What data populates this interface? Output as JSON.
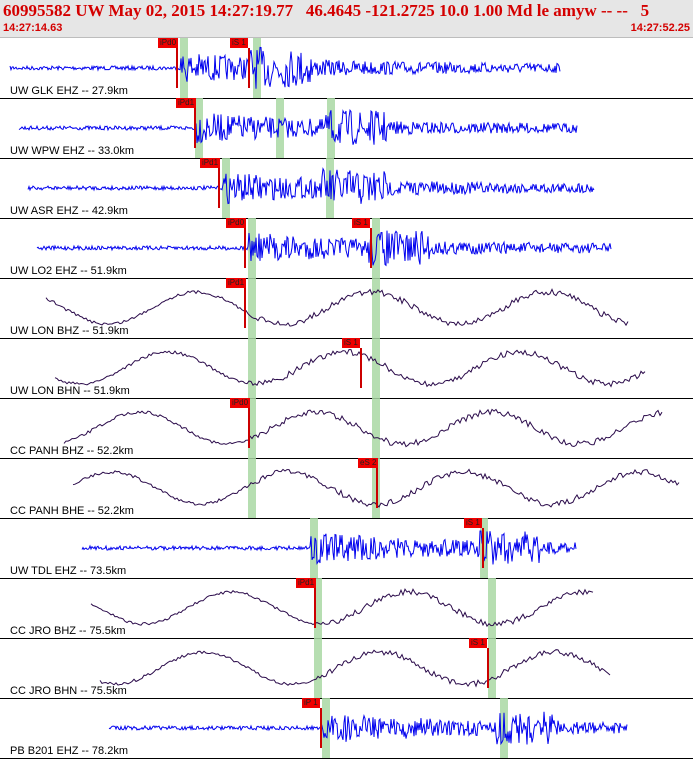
{
  "header": {
    "title": "60995582 UW May 02, 2015 14:27:19.77   46.4645 -121.2725 10.0 1.00 Md le amyw -- --   5",
    "start_time": "14:27:14.63",
    "end_time": "14:27:52.25"
  },
  "colors": {
    "short_period": "#0000ee",
    "broadband": "#2a0a4a",
    "pick": "#ee0000",
    "window": "#a9d8a3"
  },
  "traces": [
    {
      "label": "UW GLK EHZ -- 27.9km",
      "kind": "sp",
      "picks": [
        {
          "text": "iPd0",
          "x": 158
        },
        {
          "text": "iS 1",
          "x": 230
        }
      ],
      "bands": [
        180,
        253
      ]
    },
    {
      "label": "UW WPW EHZ -- 33.0km",
      "kind": "sp",
      "picks": [
        {
          "text": "iPd1",
          "x": 176
        }
      ],
      "bands": [
        195,
        276,
        327
      ]
    },
    {
      "label": "UW ASR EHZ -- 42.9km",
      "kind": "sp",
      "picks": [
        {
          "text": "iPd1",
          "x": 200
        }
      ],
      "bands": [
        222,
        326
      ]
    },
    {
      "label": "UW LO2 EHZ -- 51.9km",
      "kind": "sp",
      "picks": [
        {
          "text": "iPd0",
          "x": 226
        },
        {
          "text": "iS 1",
          "x": 352
        }
      ],
      "bands": [
        248,
        372
      ]
    },
    {
      "label": "UW LON BHZ -- 51.9km",
      "kind": "bb",
      "picks": [
        {
          "text": "iPd1",
          "x": 226
        }
      ],
      "bands": [
        248,
        372
      ]
    },
    {
      "label": "UW LON BHN -- 51.9km",
      "kind": "bb",
      "picks": [
        {
          "text": "iS 1",
          "x": 342
        }
      ],
      "bands": [
        248,
        372
      ]
    },
    {
      "label": "CC PANH BHZ -- 52.2km",
      "kind": "bb",
      "picks": [
        {
          "text": "iPd0",
          "x": 230
        }
      ],
      "bands": [
        248,
        372
      ]
    },
    {
      "label": "CC PANH BHE -- 52.2km",
      "kind": "bb",
      "picks": [
        {
          "text": "eS 2",
          "x": 358
        }
      ],
      "bands": [
        248,
        372
      ]
    },
    {
      "label": "UW TDL EHZ -- 73.5km",
      "kind": "sp",
      "picks": [
        {
          "text": "iS 1",
          "x": 464
        }
      ],
      "bands": [
        310,
        480
      ]
    },
    {
      "label": "CC JRO BHZ -- 75.5km",
      "kind": "bb",
      "picks": [
        {
          "text": "iPd1",
          "x": 296
        }
      ],
      "bands": [
        314,
        488
      ]
    },
    {
      "label": "CC JRO BHN -- 75.5km",
      "kind": "bb",
      "picks": [
        {
          "text": "iS 1",
          "x": 469
        }
      ],
      "bands": [
        314,
        488
      ]
    },
    {
      "label": "PB B201 EHZ -- 78.2km",
      "kind": "sp",
      "picks": [
        {
          "text": "iP 1",
          "x": 302
        }
      ],
      "bands": [
        322,
        500
      ]
    }
  ]
}
